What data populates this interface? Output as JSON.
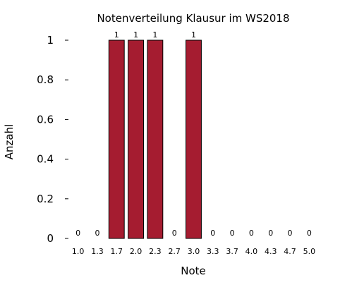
{
  "chart_data": {
    "type": "bar",
    "title": "Notenverteilung Klausur im WS2018",
    "xlabel": "Note",
    "ylabel": "Anzahl",
    "categories": [
      "1.0",
      "1.3",
      "1.7",
      "2.0",
      "2.3",
      "2.7",
      "3.0",
      "3.3",
      "3.7",
      "4.0",
      "4.3",
      "4.7",
      "5.0"
    ],
    "values": [
      0,
      0,
      1,
      1,
      1,
      0,
      1,
      0,
      0,
      0,
      0,
      0,
      0
    ],
    "data_labels": [
      "0",
      "0",
      "1",
      "1",
      "1",
      "0",
      "1",
      "0",
      "0",
      "0",
      "0",
      "0",
      "0"
    ],
    "ylim": [
      0,
      1
    ],
    "yticks": [
      0,
      0.2,
      0.4,
      0.6,
      0.8,
      1
    ],
    "ytick_labels": [
      "0",
      "0.2",
      "0.4",
      "0.6",
      "0.8",
      "1"
    ],
    "grid": false,
    "bar_color": "#a51c30",
    "bar_edge_color": "#000000"
  }
}
